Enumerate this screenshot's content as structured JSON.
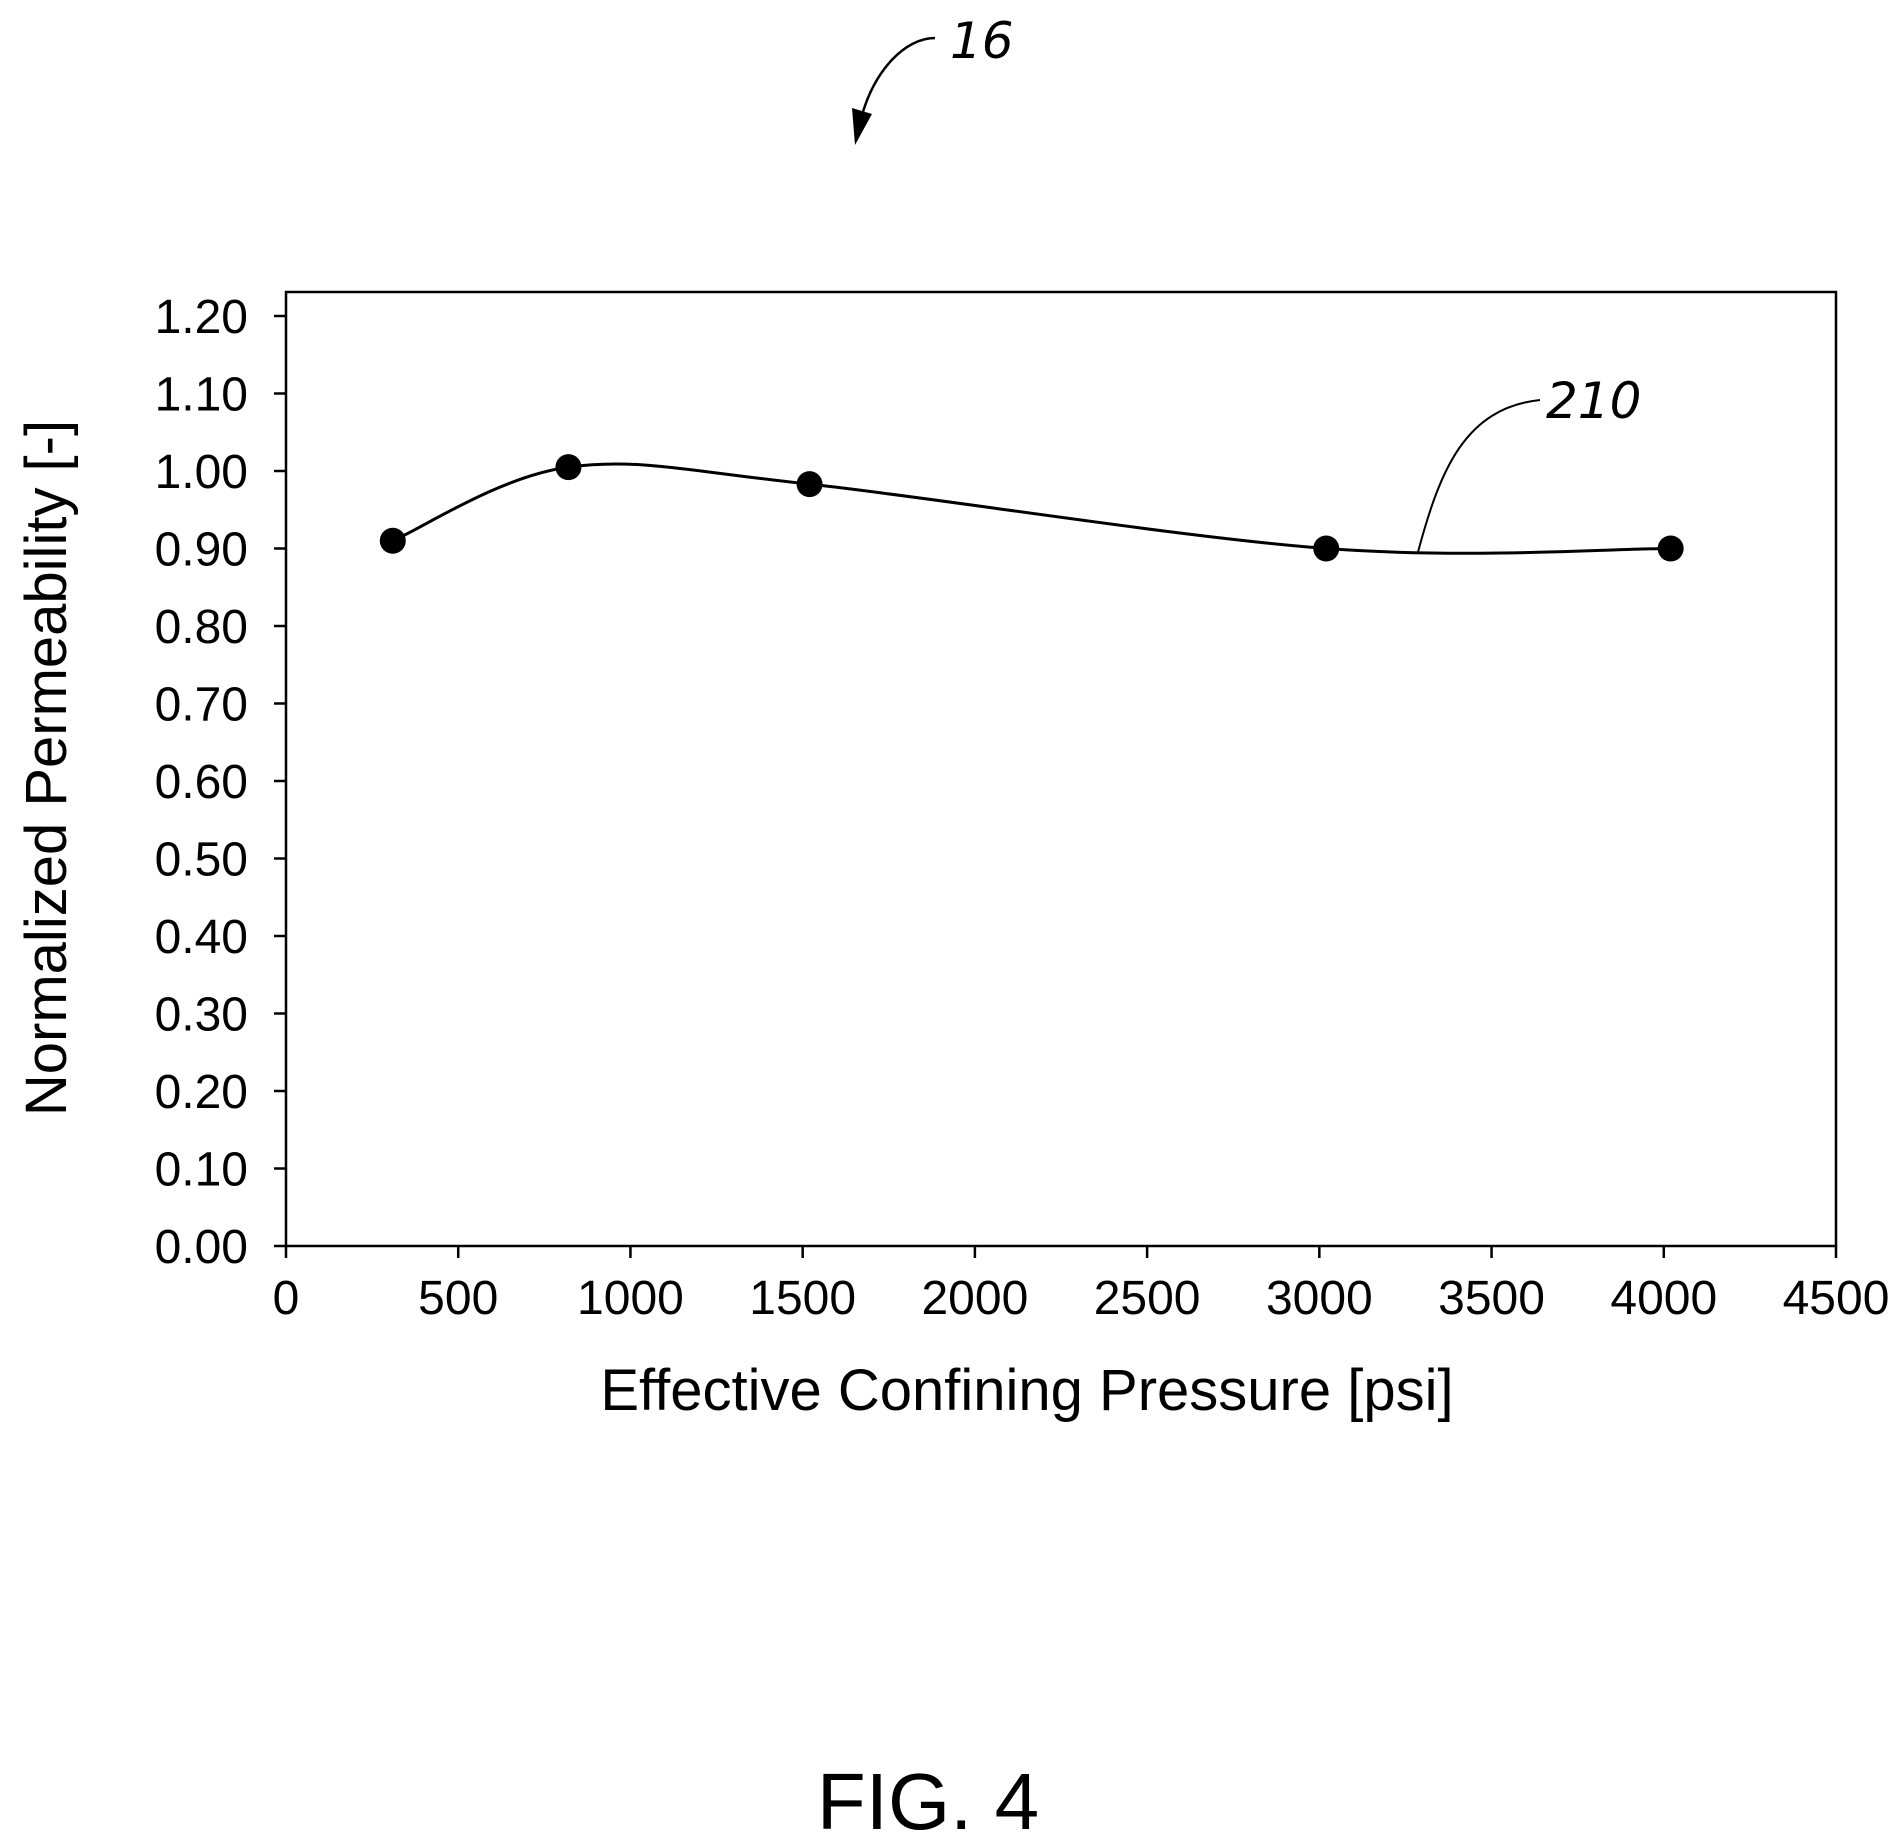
{
  "figure": {
    "ref_numeral": "16",
    "caption": "FIG. 4"
  },
  "chart_data": {
    "type": "line",
    "title": "",
    "xlabel": "Effective Confining Pressure [psi]",
    "ylabel": "Normalized Permeability [-]",
    "xlim": [
      0,
      4500
    ],
    "ylim": [
      0.0,
      1.2
    ],
    "x_ticks": [
      0,
      500,
      1000,
      1500,
      2000,
      2500,
      3000,
      3500,
      4000,
      4500
    ],
    "x_tick_labels": [
      "0",
      "500",
      "1000",
      "1500",
      "2000",
      "2500",
      "3000",
      "3500",
      "4000",
      "4500"
    ],
    "y_ticks": [
      0.0,
      0.1,
      0.2,
      0.3,
      0.4,
      0.5,
      0.6,
      0.7,
      0.8,
      0.9,
      1.0,
      1.1,
      1.2
    ],
    "y_tick_labels": [
      "0.00",
      "0.10",
      "0.20",
      "0.30",
      "0.40",
      "0.50",
      "0.60",
      "0.70",
      "0.80",
      "0.90",
      "1.00",
      "1.10",
      "1.20"
    ],
    "grid": false,
    "legend": "none",
    "smooth": true,
    "series": [
      {
        "label": "210",
        "x": [
          310,
          820,
          1520,
          3020,
          4020
        ],
        "y": [
          0.91,
          1.005,
          0.983,
          0.9,
          0.9
        ],
        "color": "#000000",
        "marker": "filled-circle"
      }
    ]
  }
}
